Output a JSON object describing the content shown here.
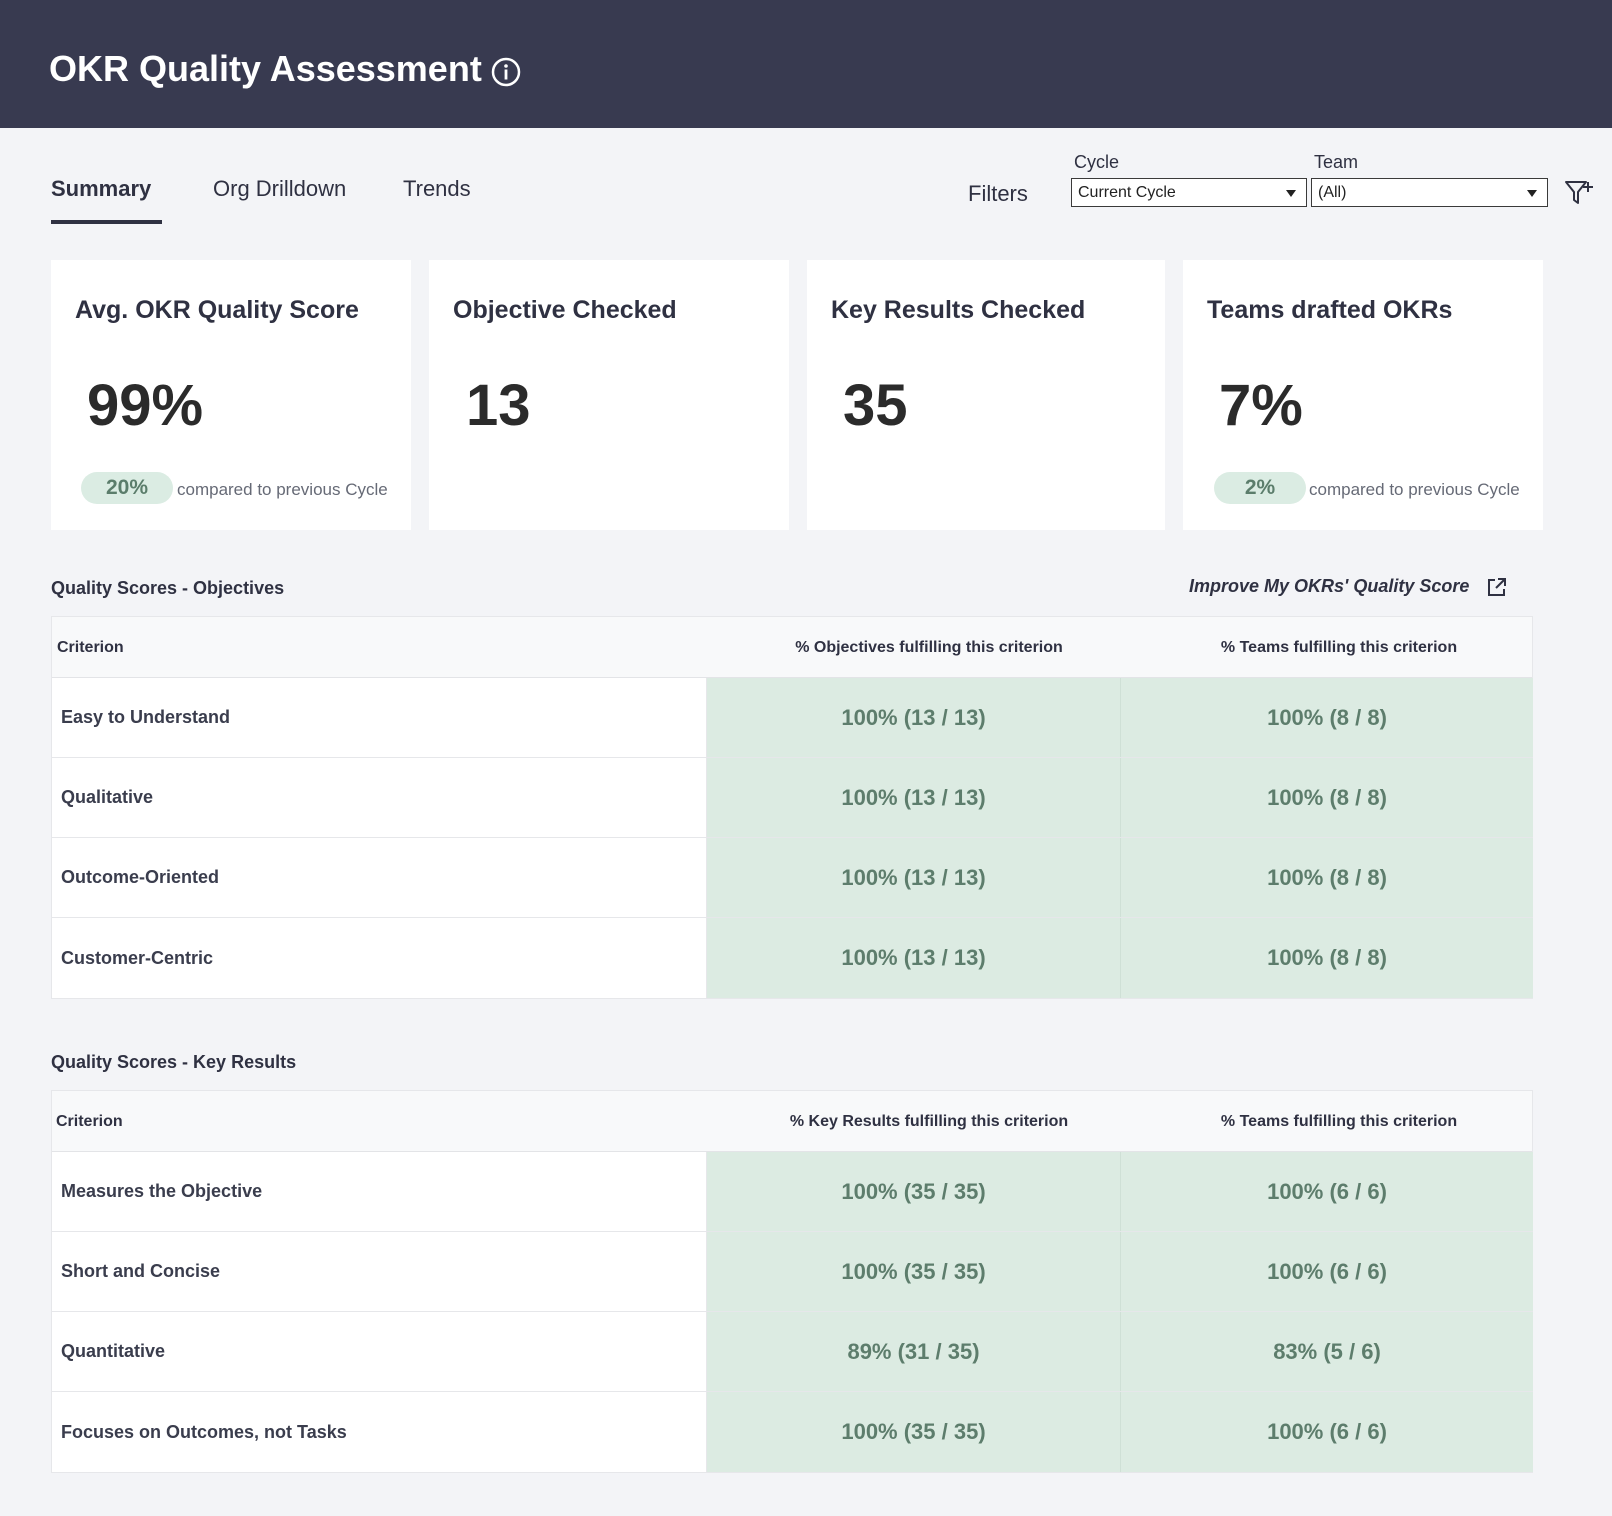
{
  "header": {
    "title": "OKR Quality Assessment"
  },
  "tabs": [
    {
      "label": "Summary",
      "active": true
    },
    {
      "label": "Org Drilldown",
      "active": false
    },
    {
      "label": "Trends",
      "active": false
    }
  ],
  "filters": {
    "label": "Filters",
    "cycle": {
      "label": "Cycle",
      "value": "Current Cycle"
    },
    "team": {
      "label": "Team",
      "value": "(All)"
    }
  },
  "cards": [
    {
      "title": "Avg. OKR Quality Score",
      "value": "99%",
      "delta": "20%",
      "compare_text": "compared to previous Cycle"
    },
    {
      "title": "Objective Checked",
      "value": "13"
    },
    {
      "title": "Key Results Checked",
      "value": "35"
    },
    {
      "title": "Teams drafted OKRs",
      "value": "7%",
      "delta": "2%",
      "compare_text": "compared to previous Cycle"
    }
  ],
  "objectives": {
    "title": "Quality Scores - Objectives",
    "improve_link": "Improve My OKRs' Quality Score",
    "columns": [
      "Criterion",
      "% Objectives fulfilling this criterion",
      "% Teams fulfilling this criterion"
    ],
    "rows": [
      {
        "criterion": "Easy to Understand",
        "items": "100% (13 / 13)",
        "teams": "100% (8 / 8)"
      },
      {
        "criterion": "Qualitative",
        "items": "100% (13 / 13)",
        "teams": "100% (8 / 8)"
      },
      {
        "criterion": "Outcome-Oriented",
        "items": "100% (13 / 13)",
        "teams": "100% (8 / 8)"
      },
      {
        "criterion": "Customer-Centric",
        "items": "100% (13 / 13)",
        "teams": "100% (8 / 8)"
      }
    ]
  },
  "key_results": {
    "title": "Quality Scores - Key Results",
    "columns": [
      "Criterion",
      "% Key Results fulfilling this criterion",
      "% Teams fulfilling this criterion"
    ],
    "rows": [
      {
        "criterion": "Measures the Objective",
        "items": "100% (35 / 35)",
        "teams": "100% (6 / 6)"
      },
      {
        "criterion": "Short and Concise",
        "items": "100% (35 / 35)",
        "teams": "100% (6 / 6)"
      },
      {
        "criterion": "Quantitative",
        "items": "89% (31 / 35)",
        "teams": "83% (5 / 6)"
      },
      {
        "criterion": "Focuses on Outcomes, not Tasks",
        "items": "100% (35 / 35)",
        "teams": "100% (6 / 6)"
      }
    ]
  },
  "colors": {
    "header_bg": "#383a50",
    "page_bg": "#f3f4f7",
    "cell_green": "#dcebe2",
    "badge_green": "#dbece3",
    "value_text": "#5d7d6c"
  },
  "icons": {
    "info": "info-circle-icon",
    "filter": "filter-add-icon",
    "external_link": "external-link-icon",
    "dropdown": "caret-down-icon"
  }
}
